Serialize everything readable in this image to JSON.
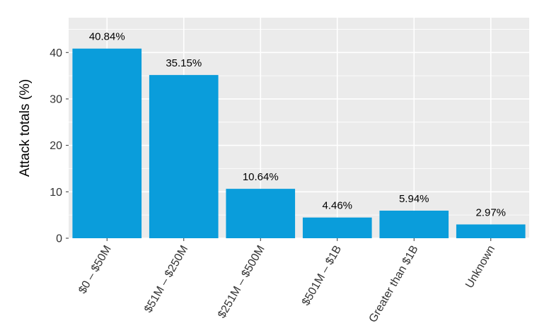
{
  "chart_data": {
    "type": "bar",
    "categories": [
      "$0 – $50M",
      "$51M – $250M",
      "$251M – $500M",
      "$501M – $1B",
      "Greater than $1B",
      "Unknown"
    ],
    "values": [
      40.84,
      35.15,
      10.64,
      4.46,
      5.94,
      2.97
    ],
    "data_labels": [
      "40.84%",
      "35.15%",
      "10.64%",
      "4.46%",
      "5.94%",
      "2.97%"
    ],
    "title": "",
    "xlabel": "",
    "ylabel": "Attack totals (%)",
    "ylim": [
      0,
      47.5
    ],
    "yticks": [
      0,
      10,
      20,
      30,
      40
    ],
    "grid": true,
    "legend": "none",
    "bar_color": "#0a9ddb",
    "background_color": "#ebebeb"
  }
}
